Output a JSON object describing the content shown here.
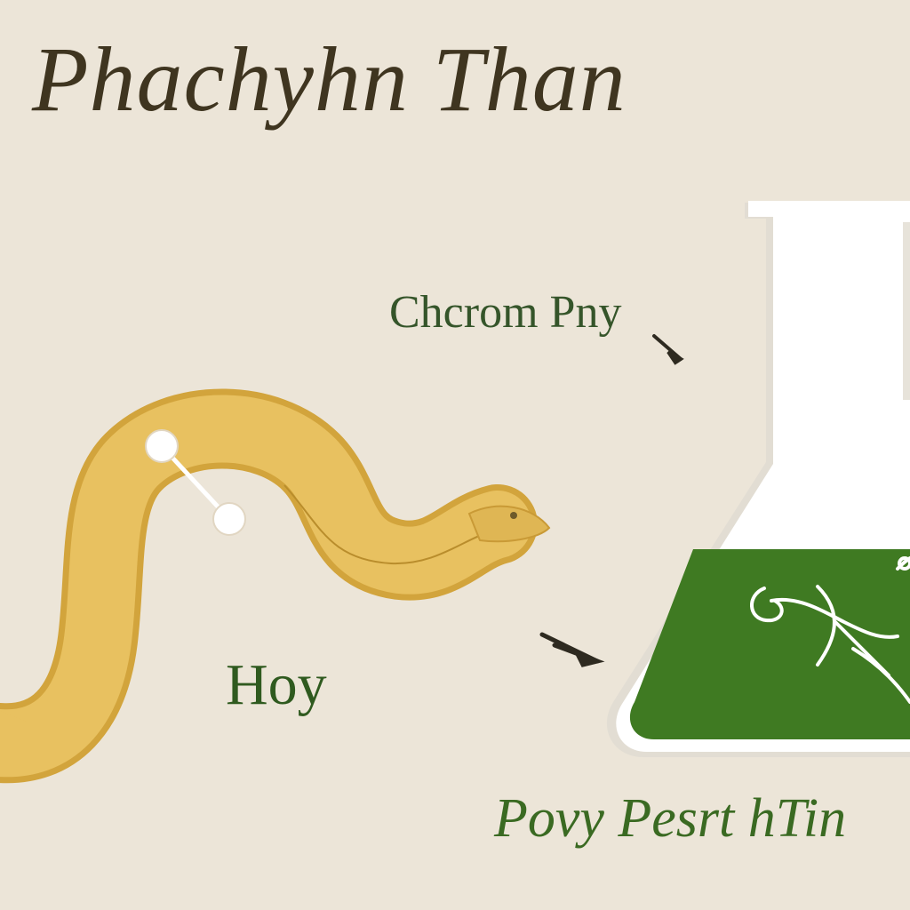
{
  "title": "Phachyhn Than",
  "labels": {
    "flask_label": "Chcrom Pny",
    "snake_label": "Hoy",
    "bottom_label": "Povy Pesrt hTin"
  },
  "colors": {
    "background": "#ece5d8",
    "title": "#3f3520",
    "snake_body": "#e8c160",
    "snake_outline": "#d2a43c",
    "liquid": "#3f7a22",
    "flask": "#ffffff",
    "label_green": "#2f5a1f"
  }
}
